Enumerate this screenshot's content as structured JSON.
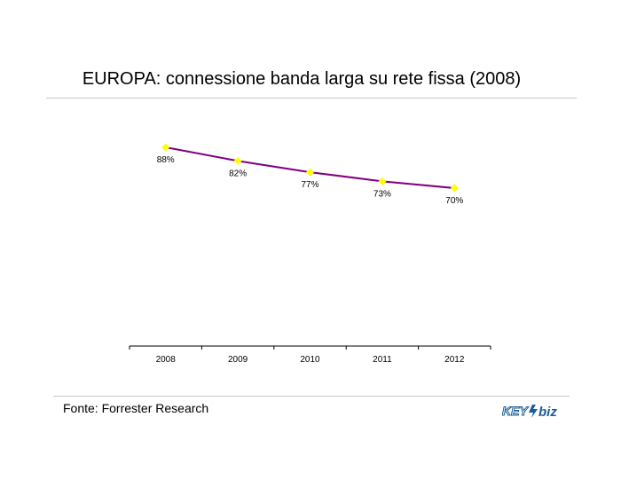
{
  "title": "EUROPA: connessione banda larga su rete fissa (2008)",
  "source": "Fonte: Forrester Research",
  "logo": {
    "text_left": "KEY",
    "text_right": "biz",
    "color_left": "#1d5c9a",
    "color_right": "#1d5c9a"
  },
  "chart_data": {
    "type": "line",
    "categories": [
      "2008",
      "2009",
      "2010",
      "2011",
      "2012"
    ],
    "series": [
      {
        "values": [
          88,
          82,
          77,
          73,
          70
        ],
        "labels": [
          "88%",
          "82%",
          "77%",
          "73%",
          "70%"
        ]
      }
    ],
    "line_color": "#800080",
    "marker_color": "#ffff00",
    "grid": false,
    "y_axis_visible": false
  }
}
